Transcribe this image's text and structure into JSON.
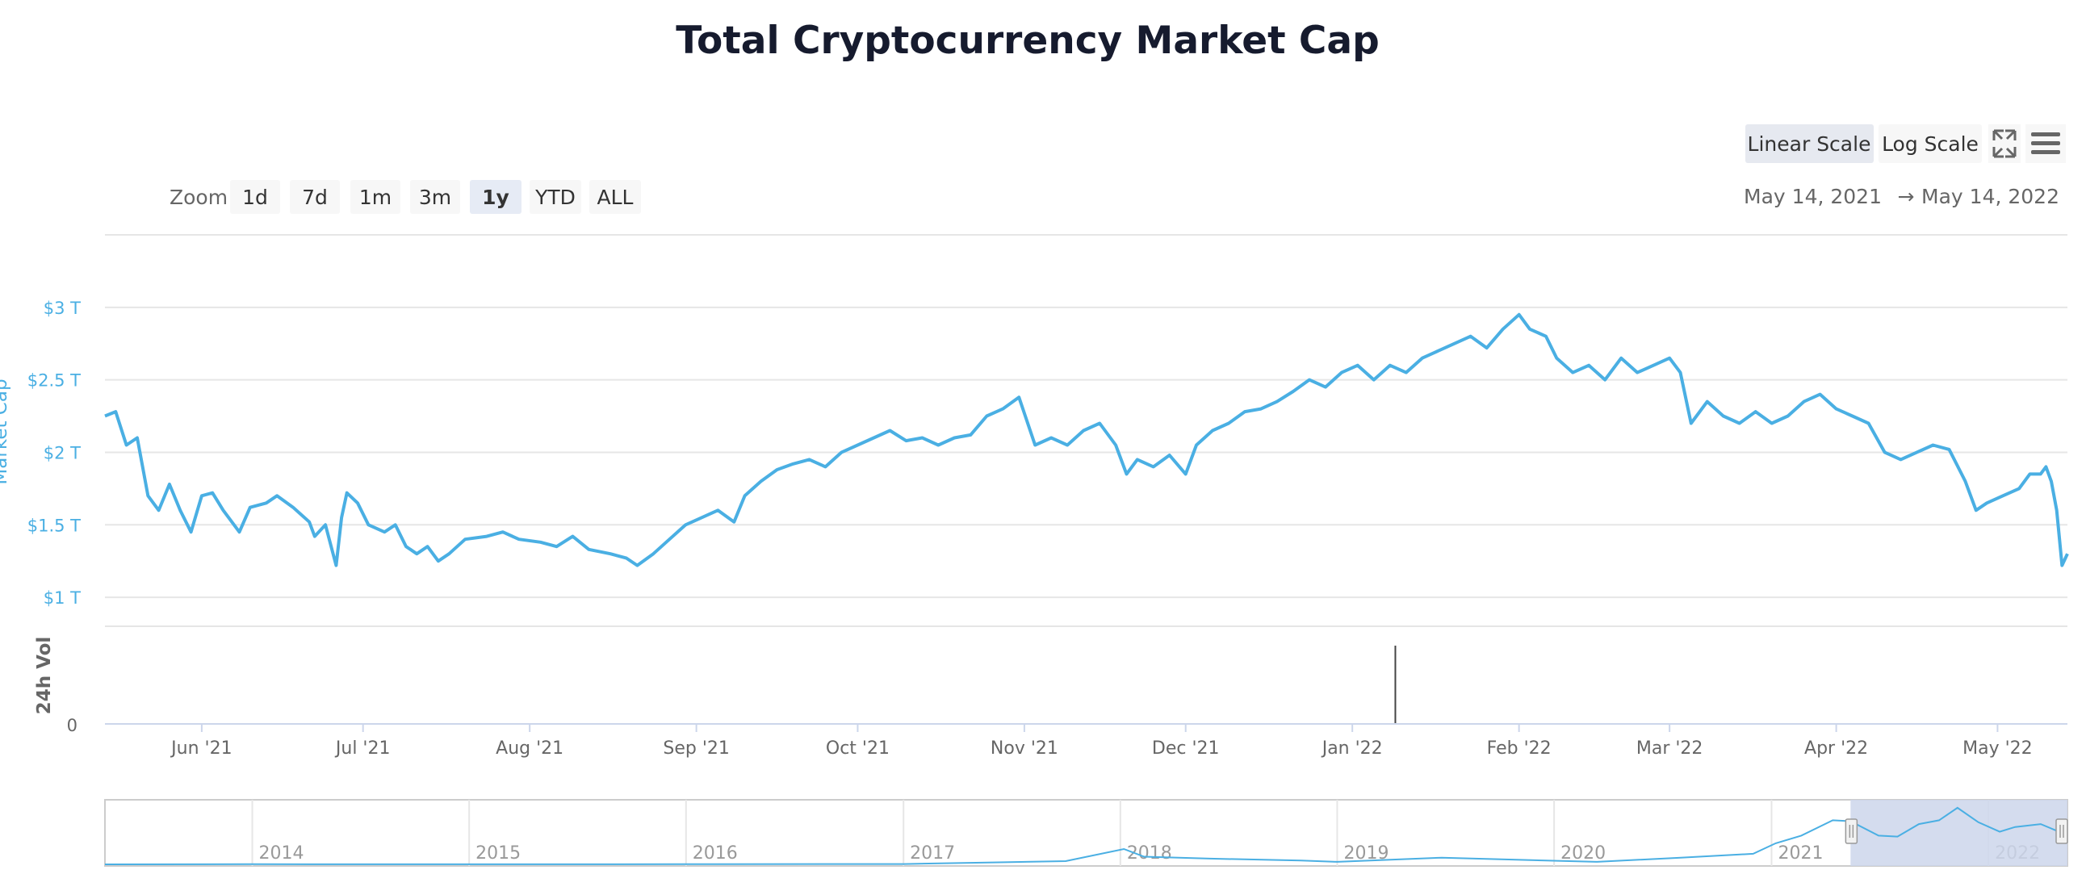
{
  "chart_data": {
    "type": "line",
    "title": "Total Cryptocurrency Market Cap",
    "scale_buttons": [
      "Linear Scale",
      "Log Scale"
    ],
    "selected_scale": "Linear Scale",
    "zoom": {
      "label": "Zoom",
      "options": [
        "1d",
        "7d",
        "1m",
        "3m",
        "1y",
        "YTD",
        "ALL"
      ],
      "selected": "1y"
    },
    "range": {
      "from": "May 14, 2021",
      "arrow": "→",
      "to": "May 14, 2022"
    },
    "y_axis": {
      "title": "Market Cap",
      "ticks": [
        {
          "label": "$1 T",
          "value": 1.0
        },
        {
          "label": "$1.5 T",
          "value": 1.5
        },
        {
          "label": "$2 T",
          "value": 2.0
        },
        {
          "label": "$2.5 T",
          "value": 2.5
        },
        {
          "label": "$3 T",
          "value": 3.0
        }
      ],
      "ylim": [
        0.8,
        3.5
      ]
    },
    "volume_axis": {
      "title": "24h Vol",
      "ticks": [
        {
          "label": "0",
          "value": 0
        }
      ]
    },
    "volume_spike": {
      "date": "2022-01-09"
    },
    "x_axis": {
      "start": "2021-05-14",
      "end": "2022-05-14",
      "ticks": [
        {
          "label": "Jun '21",
          "date": "2021-06-01"
        },
        {
          "label": "Jul '21",
          "date": "2021-07-01"
        },
        {
          "label": "Aug '21",
          "date": "2021-08-01"
        },
        {
          "label": "Sep '21",
          "date": "2021-09-01"
        },
        {
          "label": "Oct '21",
          "date": "2021-10-01"
        },
        {
          "label": "Nov '21",
          "date": "2021-11-01"
        },
        {
          "label": "Dec '21",
          "date": "2021-12-01"
        },
        {
          "label": "Jan '22",
          "date": "2022-01-01"
        },
        {
          "label": "Feb '22",
          "date": "2022-02-01"
        },
        {
          "label": "Mar '22",
          "date": "2022-03-01"
        },
        {
          "label": "Apr '22",
          "date": "2022-04-01"
        },
        {
          "label": "May '22",
          "date": "2022-05-01"
        }
      ]
    },
    "series": [
      {
        "name": "Market Cap",
        "unit": "trillion USD",
        "color": "#4aafe3",
        "points": [
          [
            "2021-05-14",
            2.25
          ],
          [
            "2021-05-16",
            2.28
          ],
          [
            "2021-05-18",
            2.05
          ],
          [
            "2021-05-20",
            2.1
          ],
          [
            "2021-05-22",
            1.7
          ],
          [
            "2021-05-24",
            1.6
          ],
          [
            "2021-05-26",
            1.78
          ],
          [
            "2021-05-28",
            1.6
          ],
          [
            "2021-05-30",
            1.45
          ],
          [
            "2021-06-01",
            1.7
          ],
          [
            "2021-06-03",
            1.72
          ],
          [
            "2021-06-05",
            1.6
          ],
          [
            "2021-06-08",
            1.45
          ],
          [
            "2021-06-10",
            1.62
          ],
          [
            "2021-06-13",
            1.65
          ],
          [
            "2021-06-15",
            1.7
          ],
          [
            "2021-06-18",
            1.62
          ],
          [
            "2021-06-21",
            1.52
          ],
          [
            "2021-06-22",
            1.42
          ],
          [
            "2021-06-24",
            1.5
          ],
          [
            "2021-06-26",
            1.22
          ],
          [
            "2021-06-27",
            1.55
          ],
          [
            "2021-06-28",
            1.72
          ],
          [
            "2021-06-30",
            1.65
          ],
          [
            "2021-07-02",
            1.5
          ],
          [
            "2021-07-05",
            1.45
          ],
          [
            "2021-07-07",
            1.5
          ],
          [
            "2021-07-09",
            1.35
          ],
          [
            "2021-07-11",
            1.3
          ],
          [
            "2021-07-13",
            1.35
          ],
          [
            "2021-07-15",
            1.25
          ],
          [
            "2021-07-17",
            1.3
          ],
          [
            "2021-07-20",
            1.4
          ],
          [
            "2021-07-24",
            1.42
          ],
          [
            "2021-07-27",
            1.45
          ],
          [
            "2021-07-30",
            1.4
          ],
          [
            "2021-08-03",
            1.38
          ],
          [
            "2021-08-06",
            1.35
          ],
          [
            "2021-08-09",
            1.42
          ],
          [
            "2021-08-12",
            1.33
          ],
          [
            "2021-08-16",
            1.3
          ],
          [
            "2021-08-19",
            1.27
          ],
          [
            "2021-08-21",
            1.22
          ],
          [
            "2021-08-24",
            1.3
          ],
          [
            "2021-08-27",
            1.4
          ],
          [
            "2021-08-30",
            1.5
          ],
          [
            "2021-09-02",
            1.55
          ],
          [
            "2021-09-05",
            1.6
          ],
          [
            "2021-09-08",
            1.52
          ],
          [
            "2021-09-10",
            1.7
          ],
          [
            "2021-09-13",
            1.8
          ],
          [
            "2021-09-16",
            1.88
          ],
          [
            "2021-09-19",
            1.92
          ],
          [
            "2021-09-22",
            1.95
          ],
          [
            "2021-09-25",
            1.9
          ],
          [
            "2021-09-28",
            2.0
          ],
          [
            "2021-10-01",
            2.05
          ],
          [
            "2021-10-04",
            2.1
          ],
          [
            "2021-10-07",
            2.15
          ],
          [
            "2021-10-10",
            2.08
          ],
          [
            "2021-10-13",
            2.1
          ],
          [
            "2021-10-16",
            2.05
          ],
          [
            "2021-10-19",
            2.1
          ],
          [
            "2021-10-22",
            2.12
          ],
          [
            "2021-10-25",
            2.25
          ],
          [
            "2021-10-28",
            2.3
          ],
          [
            "2021-10-31",
            2.38
          ],
          [
            "2021-11-03",
            2.05
          ],
          [
            "2021-11-06",
            2.1
          ],
          [
            "2021-11-09",
            2.05
          ],
          [
            "2021-11-12",
            2.15
          ],
          [
            "2021-11-15",
            2.2
          ],
          [
            "2021-11-18",
            2.05
          ],
          [
            "2021-11-20",
            1.85
          ],
          [
            "2021-11-22",
            1.95
          ],
          [
            "2021-11-25",
            1.9
          ],
          [
            "2021-11-28",
            1.98
          ],
          [
            "2021-12-01",
            1.85
          ],
          [
            "2021-12-03",
            2.05
          ],
          [
            "2021-12-06",
            2.15
          ],
          [
            "2021-12-09",
            2.2
          ],
          [
            "2021-12-12",
            2.28
          ],
          [
            "2021-12-15",
            2.3
          ],
          [
            "2021-12-18",
            2.35
          ],
          [
            "2021-12-21",
            2.42
          ],
          [
            "2021-12-24",
            2.5
          ],
          [
            "2021-12-27",
            2.45
          ],
          [
            "2021-12-30",
            2.55
          ],
          [
            "2022-01-02",
            2.6
          ],
          [
            "2022-01-05",
            2.5
          ],
          [
            "2022-01-08",
            2.6
          ],
          [
            "2022-01-11",
            2.55
          ],
          [
            "2022-01-14",
            2.65
          ],
          [
            "2022-01-17",
            2.7
          ],
          [
            "2022-01-20",
            2.75
          ],
          [
            "2022-01-23",
            2.8
          ],
          [
            "2022-01-26",
            2.72
          ],
          [
            "2022-01-29",
            2.85
          ],
          [
            "2022-02-01",
            2.95
          ],
          [
            "2022-02-03",
            2.85
          ],
          [
            "2022-02-06",
            2.8
          ],
          [
            "2022-02-08",
            2.65
          ],
          [
            "2022-02-11",
            2.55
          ],
          [
            "2022-02-14",
            2.6
          ],
          [
            "2022-02-17",
            2.5
          ],
          [
            "2022-02-20",
            2.65
          ],
          [
            "2022-02-23",
            2.55
          ],
          [
            "2022-02-26",
            2.6
          ],
          [
            "2022-03-01",
            2.65
          ],
          [
            "2022-03-03",
            2.55
          ],
          [
            "2022-03-05",
            2.2
          ],
          [
            "2022-03-08",
            2.35
          ],
          [
            "2022-03-11",
            2.25
          ],
          [
            "2022-03-14",
            2.2
          ],
          [
            "2022-03-17",
            2.28
          ],
          [
            "2022-03-20",
            2.2
          ],
          [
            "2022-03-23",
            2.25
          ],
          [
            "2022-03-26",
            2.35
          ],
          [
            "2022-03-29",
            2.4
          ],
          [
            "2022-04-01",
            2.3
          ],
          [
            "2022-04-04",
            2.25
          ],
          [
            "2022-04-07",
            2.2
          ],
          [
            "2022-04-10",
            2.0
          ],
          [
            "2022-04-13",
            1.95
          ],
          [
            "2022-04-16",
            2.0
          ],
          [
            "2022-04-19",
            2.05
          ],
          [
            "2022-04-22",
            2.02
          ],
          [
            "2022-04-25",
            1.8
          ],
          [
            "2022-04-27",
            1.6
          ],
          [
            "2022-04-29",
            1.65
          ],
          [
            "2022-05-02",
            1.7
          ],
          [
            "2022-05-05",
            1.75
          ],
          [
            "2022-05-07",
            1.85
          ],
          [
            "2022-05-09",
            1.85
          ],
          [
            "2022-05-10",
            1.9
          ],
          [
            "2022-05-11",
            1.8
          ],
          [
            "2022-05-12",
            1.6
          ],
          [
            "2022-05-13",
            1.22
          ],
          [
            "2022-05-14",
            1.3
          ]
        ]
      }
    ],
    "navigator": {
      "start": "2013-04-28",
      "end": "2022-05-14",
      "selected_from": "2021-05-14",
      "selected_to": "2022-05-14",
      "year_labels": [
        {
          "label": "2014",
          "date": "2014-01-01"
        },
        {
          "label": "2015",
          "date": "2015-01-01"
        },
        {
          "label": "2016",
          "date": "2016-01-01"
        },
        {
          "label": "2017",
          "date": "2017-01-01"
        },
        {
          "label": "2018",
          "date": "2018-01-01"
        },
        {
          "label": "2019",
          "date": "2019-01-01"
        },
        {
          "label": "2020",
          "date": "2020-01-01"
        },
        {
          "label": "2021",
          "date": "2021-01-01"
        },
        {
          "label": "2022",
          "date": "2022-01-01"
        }
      ],
      "series": [
        [
          "2013-04-28",
          0.0015
        ],
        [
          "2014-01-01",
          0.01
        ],
        [
          "2015-01-01",
          0.005
        ],
        [
          "2016-01-01",
          0.007
        ],
        [
          "2017-01-01",
          0.018
        ],
        [
          "2017-06-01",
          0.1
        ],
        [
          "2017-10-01",
          0.17
        ],
        [
          "2018-01-07",
          0.8
        ],
        [
          "2018-02-10",
          0.4
        ],
        [
          "2018-06-01",
          0.3
        ],
        [
          "2018-11-01",
          0.2
        ],
        [
          "2019-01-01",
          0.13
        ],
        [
          "2019-06-26",
          0.35
        ],
        [
          "2019-12-31",
          0.19
        ],
        [
          "2020-03-13",
          0.13
        ],
        [
          "2020-08-01",
          0.35
        ],
        [
          "2020-12-01",
          0.55
        ],
        [
          "2021-01-08",
          1.1
        ],
        [
          "2021-02-20",
          1.5
        ],
        [
          "2021-04-14",
          2.3
        ],
        [
          "2021-05-14",
          2.25
        ],
        [
          "2021-06-30",
          1.5
        ],
        [
          "2021-08-01",
          1.45
        ],
        [
          "2021-09-06",
          2.1
        ],
        [
          "2021-10-10",
          2.3
        ],
        [
          "2021-11-10",
          2.95
        ],
        [
          "2021-12-15",
          2.2
        ],
        [
          "2022-01-20",
          1.7
        ],
        [
          "2022-02-15",
          1.95
        ],
        [
          "2022-03-30",
          2.1
        ],
        [
          "2022-04-26",
          1.75
        ],
        [
          "2022-05-14",
          1.3
        ]
      ],
      "ylim": [
        0,
        3.2
      ]
    },
    "toolbar": {
      "fullscreen_icon": "fullscreen-icon",
      "menu_icon": "hamburger-menu-icon"
    }
  }
}
